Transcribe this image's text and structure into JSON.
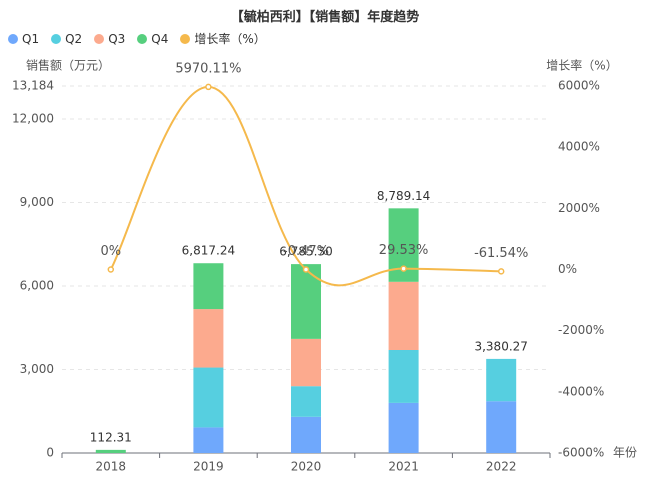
{
  "chart_data": {
    "type": "bar",
    "title": "【毓柏西利】【销售额】年度趋势",
    "categories": [
      "2018",
      "2019",
      "2020",
      "2021",
      "2022"
    ],
    "series": [
      {
        "name": "Q1",
        "color": "#6fa8fc",
        "values": [
          0,
          920,
          1300,
          1800,
          1860
        ]
      },
      {
        "name": "Q2",
        "color": "#56cfe0",
        "values": [
          0,
          2150,
          1100,
          1900,
          1520.27
        ]
      },
      {
        "name": "Q3",
        "color": "#fcaa8e",
        "values": [
          0,
          2100,
          1700,
          2450,
          0
        ]
      },
      {
        "name": "Q4",
        "color": "#56cf7e",
        "values": [
          112.31,
          1647.24,
          2685.3,
          2639.14,
          0
        ]
      }
    ],
    "totals": [
      "112.31",
      "6,817.24",
      "6,785.30",
      "8,789.14",
      "3,380.27"
    ],
    "growth_series": {
      "name": "增长率（%）",
      "color": "#f5b94c",
      "values": [
        0,
        5970.11,
        -0.47,
        29.53,
        -61.54
      ],
      "labels": [
        "0%",
        "5970.11%",
        "-0.47%",
        "29.53%",
        "-61.54%"
      ]
    },
    "ylabel_left": "销售额（万元）",
    "ylabel_right": "增长率（%）",
    "xlabel": "年份",
    "ylim_left": [
      0,
      13184
    ],
    "yticks_left": [
      "0",
      "3,000",
      "6,000",
      "9,000",
      "12,000",
      "13,184"
    ],
    "ylim_right": [
      -6000,
      6000
    ],
    "yticks_right": [
      "-6000%",
      "-4000%",
      "-2000%",
      "0%",
      "2000%",
      "4000%",
      "6000%"
    ],
    "grid": true,
    "legend_position": "top-left"
  }
}
